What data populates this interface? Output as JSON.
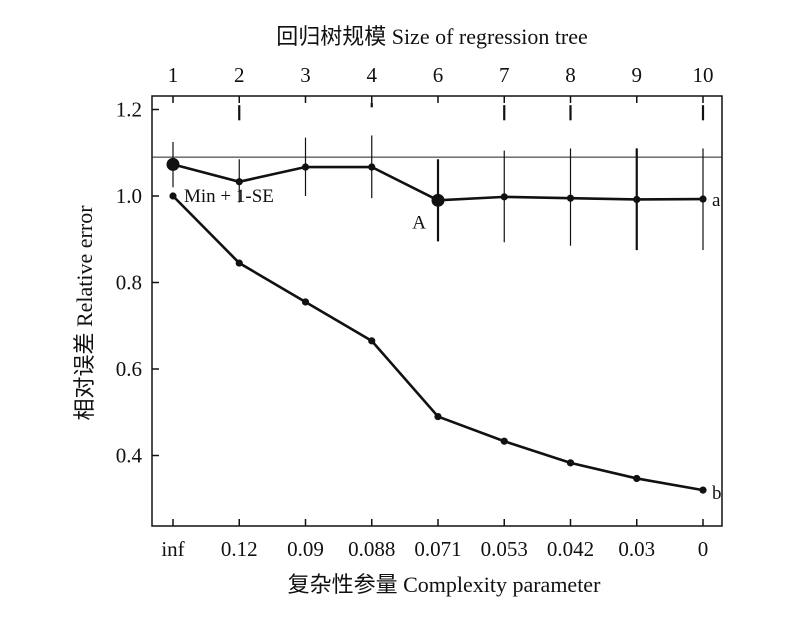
{
  "chart_data": {
    "type": "line",
    "top_axis_label": "回归树规模 Size of regression tree",
    "xlabel": "复杂性参量 Complexity parameter",
    "ylabel": "相对误差 Relative error",
    "top_categories": [
      "1",
      "2",
      "3",
      "4",
      "6",
      "7",
      "8",
      "9",
      "10"
    ],
    "categories": [
      "inf",
      "0.12",
      "0.09",
      "0.088",
      "0.071",
      "0.053",
      "0.042",
      "0.03",
      "0"
    ],
    "ylim": [
      0.3,
      1.22
    ],
    "yticks": [
      0.4,
      0.6,
      0.8,
      1.0,
      1.2
    ],
    "ytick_labels": [
      "0.4",
      "0.6",
      "0.8",
      "1.0",
      "1.2"
    ],
    "reference_line": {
      "label": "Min + 1-SE",
      "value": 1.09
    },
    "series": [
      {
        "name": "a",
        "values": [
          1.073,
          1.033,
          1.067,
          1.067,
          0.99,
          0.998,
          0.995,
          0.992,
          0.993
        ],
        "error_low": [
          1.02,
          0.985,
          1.0,
          0.995,
          0.895,
          0.893,
          0.885,
          0.875,
          0.875
        ],
        "error_high": [
          1.125,
          1.085,
          1.135,
          1.14,
          1.085,
          1.105,
          1.11,
          1.11,
          1.11
        ],
        "highlight_index": 4,
        "highlight_label": "A"
      },
      {
        "name": "b",
        "values": [
          1.0,
          0.845,
          0.755,
          0.665,
          0.49,
          0.433,
          0.383,
          0.347,
          0.32
        ]
      }
    ],
    "se_markers": [
      [
        1.175,
        1.21
      ],
      [
        1.205,
        1.215
      ],
      [
        1.175,
        1.21
      ],
      [
        1.175,
        1.21
      ],
      [
        1.175,
        1.21
      ]
    ],
    "se_marker_positions": [
      1,
      3,
      5,
      6,
      8
    ]
  }
}
